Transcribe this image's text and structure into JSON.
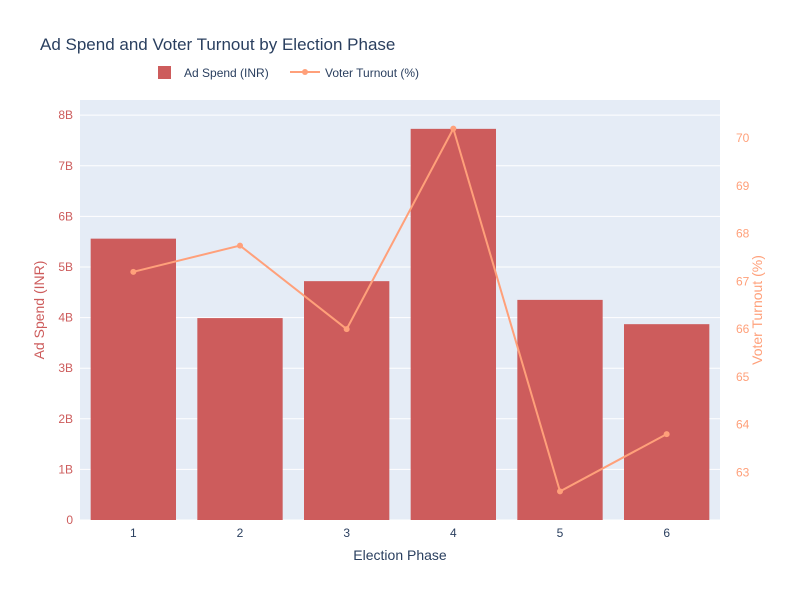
{
  "chart_data": {
    "type": "bar",
    "title": "Ad Spend and Voter Turnout by Election Phase",
    "xlabel": "Election Phase",
    "ylabel": "Ad Spend (INR)",
    "y2label": "Voter Turnout (%)",
    "categories": [
      "1",
      "2",
      "3",
      "4",
      "5",
      "6"
    ],
    "series": [
      {
        "name": "Ad Spend (INR)",
        "type": "bar",
        "axis": "left",
        "color": "#cd5c5c",
        "values": [
          5560000000,
          3990000000,
          4720000000,
          7730000000,
          4350000000,
          3870000000
        ]
      },
      {
        "name": "Voter Turnout (%)",
        "type": "line",
        "axis": "right",
        "color": "#ffa07a",
        "values": [
          67.2,
          67.75,
          66.0,
          70.2,
          62.6,
          63.8
        ]
      }
    ],
    "ylim": [
      0,
      8300000000
    ],
    "y_ticks": [
      0,
      1000000000,
      2000000000,
      3000000000,
      4000000000,
      5000000000,
      6000000000,
      7000000000,
      8000000000
    ],
    "y_tick_labels": [
      "0",
      "1B",
      "2B",
      "3B",
      "4B",
      "5B",
      "6B",
      "7B",
      "8B"
    ],
    "y2lim": [
      62.0,
      70.8
    ],
    "y2_ticks": [
      63,
      64,
      65,
      66,
      67,
      68,
      69,
      70
    ],
    "y2_tick_labels": [
      "63",
      "64",
      "65",
      "66",
      "67",
      "68",
      "69",
      "70"
    ],
    "grid": true,
    "legend_position": "top-center",
    "plot_background": "#e5ecf6"
  }
}
